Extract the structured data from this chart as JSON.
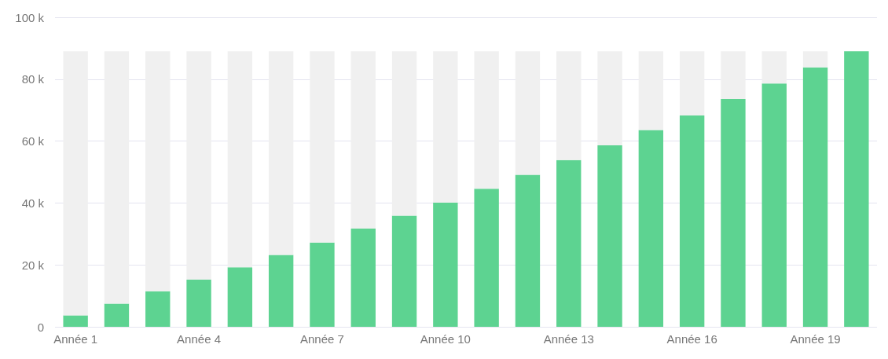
{
  "chart_data": {
    "type": "bar",
    "categories": [
      "Année 1",
      null,
      null,
      "Année 4",
      null,
      null,
      "Année 7",
      null,
      null,
      "Année 10",
      null,
      null,
      "Année 13",
      null,
      null,
      "Année 16",
      null,
      null,
      "Année 19",
      null
    ],
    "stacked": true,
    "series": [
      {
        "color": "#5dd391",
        "values": [
          3.7,
          7.5,
          11.5,
          15.2,
          19.2,
          23.2,
          27.2,
          31.7,
          35.9,
          40.1,
          44.6,
          49.1,
          53.9,
          58.6,
          63.6,
          68.3,
          73.6,
          78.6,
          83.8,
          89
        ]
      },
      {
        "color": "#f0f0f0",
        "values": [
          85.3,
          81.5,
          77.5,
          73.8,
          69.8,
          65.8,
          61.8,
          57.3,
          53.1,
          48.9,
          44.4,
          39.9,
          35.1,
          30.4,
          25.4,
          20.7,
          15.4,
          10.4,
          5.2,
          null
        ]
      }
    ],
    "ylim": [
      0,
      100
    ],
    "yticks": [
      0,
      {
        "value": 20,
        "label": "20 k"
      },
      {
        "value": 40,
        "label": "40 k"
      },
      {
        "value": 60,
        "label": "60 k"
      },
      {
        "value": 80,
        "label": "80 k"
      },
      {
        "value": 100,
        "label": "100 k"
      }
    ],
    "grid": "y"
  }
}
